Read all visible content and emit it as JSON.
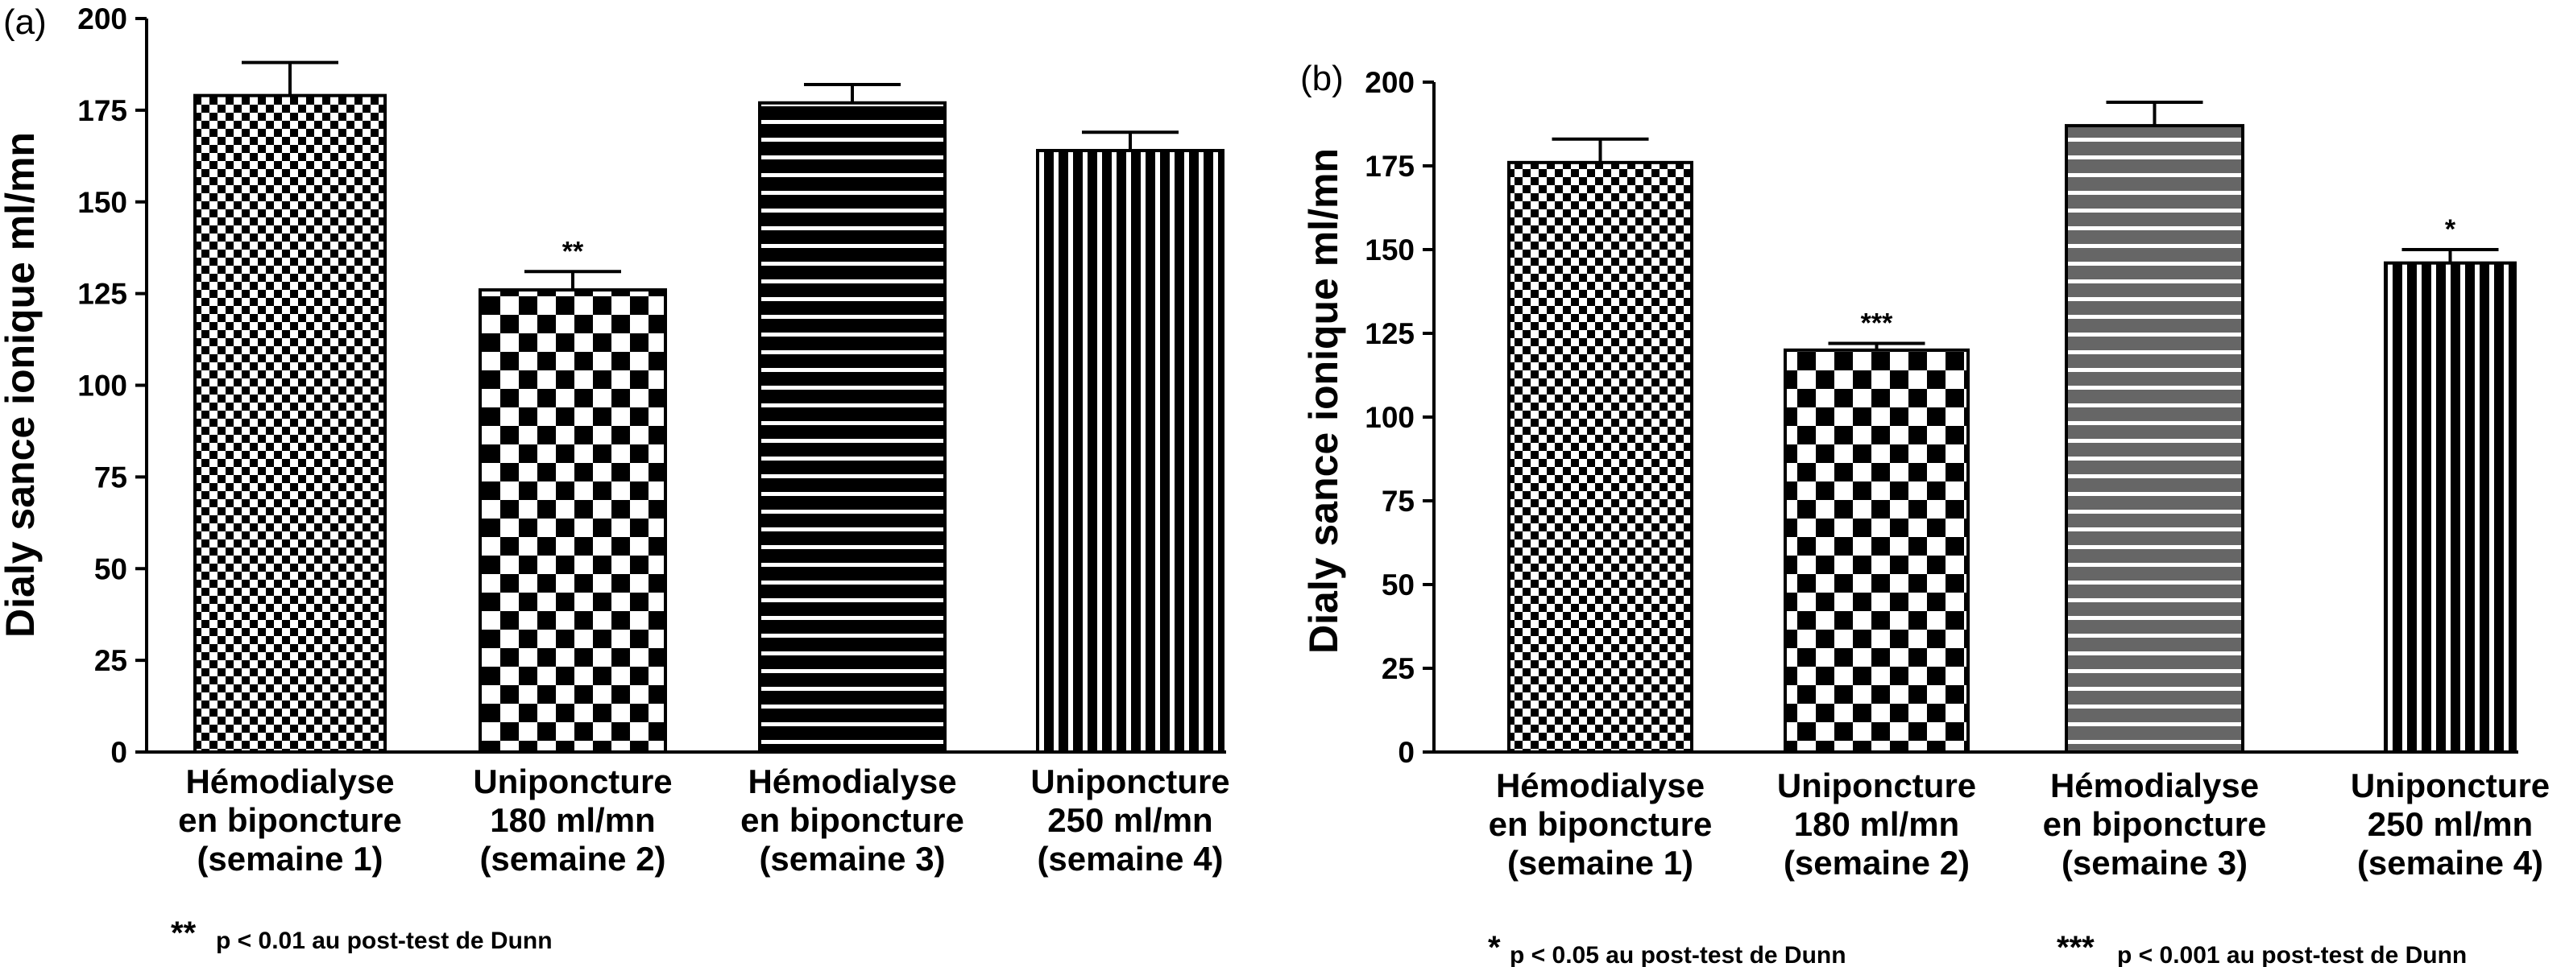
{
  "chart_data": [
    {
      "type": "bar",
      "panel_label": "(a)",
      "ylabel": "Dialy sance ionique ml/mn",
      "ylim": [
        0,
        200
      ],
      "yticks": [
        0,
        25,
        50,
        75,
        100,
        125,
        150,
        175,
        200
      ],
      "categories": [
        [
          "Hémodialyse",
          "en biponcture",
          "(semaine 1)"
        ],
        [
          "Uniponcture",
          "180 ml/mn",
          "(semaine 2)"
        ],
        [
          "Hémodialyse",
          "en biponcture",
          "(semaine 3)"
        ],
        [
          "Uniponcture",
          "250 ml/mn",
          "(semaine 4)"
        ]
      ],
      "values": [
        179,
        126,
        177,
        164
      ],
      "errors": [
        9,
        5,
        5,
        5
      ],
      "patterns": [
        "fine-check",
        "large-check",
        "hstripe-black",
        "vstripe-black"
      ],
      "significance": [
        "",
        "**",
        "",
        ""
      ],
      "footnotes": [
        {
          "stars": "**",
          "text": "p < 0.01 au post-test de Dunn"
        }
      ]
    },
    {
      "type": "bar",
      "panel_label": "(b)",
      "ylabel": "Dialy sance ionique ml/mn",
      "ylim": [
        0,
        200
      ],
      "yticks": [
        0,
        25,
        50,
        75,
        100,
        125,
        150,
        175,
        200
      ],
      "categories": [
        [
          "Hémodialyse",
          "en biponcture",
          "(semaine 1)"
        ],
        [
          "Uniponcture",
          "180 ml/mn",
          "(semaine 2)"
        ],
        [
          "Hémodialyse",
          "en biponcture",
          "(semaine 3)"
        ],
        [
          "Uniponcture",
          "250 ml/mn",
          "(semaine 4)"
        ]
      ],
      "values": [
        176,
        120,
        187,
        146
      ],
      "errors": [
        7,
        2,
        7,
        4
      ],
      "patterns": [
        "fine-check",
        "large-check",
        "hstripe-gray",
        "vstripe-black"
      ],
      "significance": [
        "",
        "***",
        "",
        "*"
      ],
      "footnotes": [
        {
          "stars": "*",
          "text": "p < 0.05 au post-test de Dunn"
        },
        {
          "stars": "***",
          "text": "p < 0.001 au post-test de Dunn"
        }
      ]
    }
  ]
}
